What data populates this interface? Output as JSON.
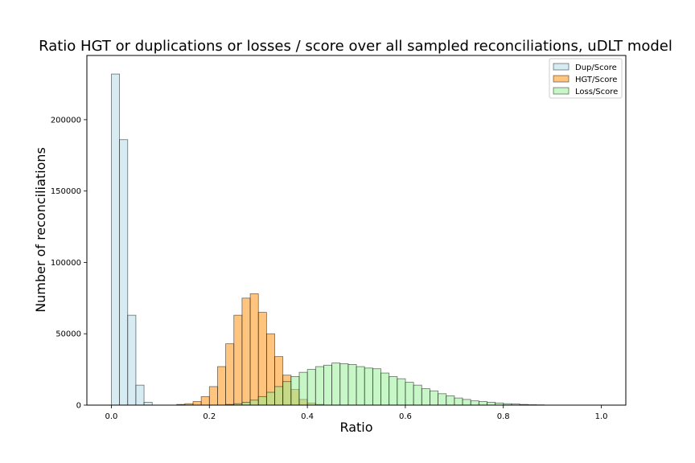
{
  "chart_data": {
    "type": "bar",
    "title": "Ratio HGT or duplications or losses / score over all sampled reconciliations, uDLT model",
    "xlabel": "Ratio",
    "ylabel": "Number of reconciliations",
    "xlim": [
      -0.05,
      1.05
    ],
    "ylim": [
      0,
      245000
    ],
    "xticks": [
      0.0,
      0.2,
      0.4,
      0.6,
      0.8,
      1.0
    ],
    "xtick_labels": [
      "0.0",
      "0.2",
      "0.4",
      "0.6",
      "0.8",
      "1.0"
    ],
    "yticks": [
      0,
      50000,
      100000,
      150000,
      200000
    ],
    "ytick_labels": [
      "0",
      "50000",
      "100000",
      "150000",
      "200000"
    ],
    "bin_edges_start": 0.0,
    "bin_width": 0.01667,
    "legend_position": "top-right",
    "grid": false,
    "series": [
      {
        "name": "Dup/Score",
        "color": "#add8e6",
        "alpha": 0.5,
        "values": [
          232000,
          186000,
          63000,
          14000,
          2000
        ]
      },
      {
        "name": "HGT/Score",
        "color": "#ff8c00",
        "alpha": 0.5,
        "values": [
          0,
          0,
          0,
          0,
          0,
          0,
          0,
          0,
          500,
          1000,
          2500,
          6000,
          13000,
          27000,
          43000,
          63000,
          75000,
          78000,
          65000,
          50000,
          34000,
          21000,
          11000,
          4000,
          1500,
          500,
          0
        ]
      },
      {
        "name": "Loss/Score",
        "color": "#90ee90",
        "alpha": 0.5,
        "values": [
          0,
          0,
          0,
          0,
          0,
          0,
          0,
          0,
          0,
          0,
          0,
          0,
          0,
          0,
          500,
          1000,
          2000,
          3500,
          6000,
          9000,
          13000,
          16500,
          20000,
          23000,
          25000,
          27000,
          28000,
          29500,
          29000,
          28500,
          27000,
          26000,
          25500,
          22500,
          20000,
          18500,
          16000,
          14000,
          11500,
          10000,
          8000,
          6500,
          5000,
          4000,
          3000,
          2500,
          2000,
          1500,
          1000,
          800,
          500,
          300,
          200
        ]
      }
    ]
  }
}
